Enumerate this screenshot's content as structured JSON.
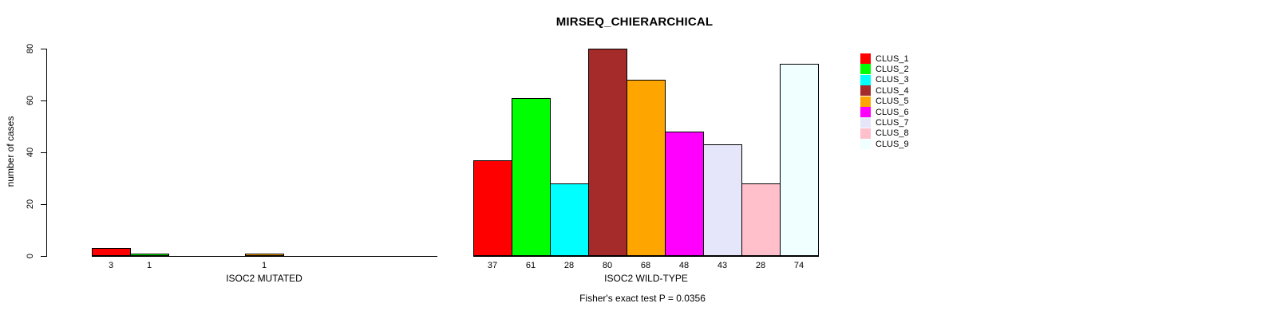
{
  "chart_data": {
    "type": "bar",
    "title": "MIRSEQ_CHIERARCHICAL",
    "ylabel": "number of cases",
    "ylim": [
      0,
      80
    ],
    "yticks": [
      0,
      20,
      40,
      60,
      80
    ],
    "grid": false,
    "legend_position": "right",
    "categories": [
      "CLUS_1",
      "CLUS_2",
      "CLUS_3",
      "CLUS_4",
      "CLUS_5",
      "CLUS_6",
      "CLUS_7",
      "CLUS_8",
      "CLUS_9"
    ],
    "colors": [
      "#FF0000",
      "#00FF00",
      "#00FFFF",
      "#A52A2A",
      "#FFA500",
      "#FF00FF",
      "#E6E6FA",
      "#FFC0CB",
      "#F0FFFF"
    ],
    "series": [
      {
        "name": "ISOC2 MUTATED",
        "values": [
          3,
          1,
          0,
          0,
          1,
          0,
          0,
          0,
          0
        ]
      },
      {
        "name": "ISOC2 WILD-TYPE",
        "values": [
          37,
          61,
          28,
          80,
          68,
          48,
          43,
          28,
          74
        ]
      }
    ],
    "annotation": "Fisher's exact test P = 0.0356"
  }
}
